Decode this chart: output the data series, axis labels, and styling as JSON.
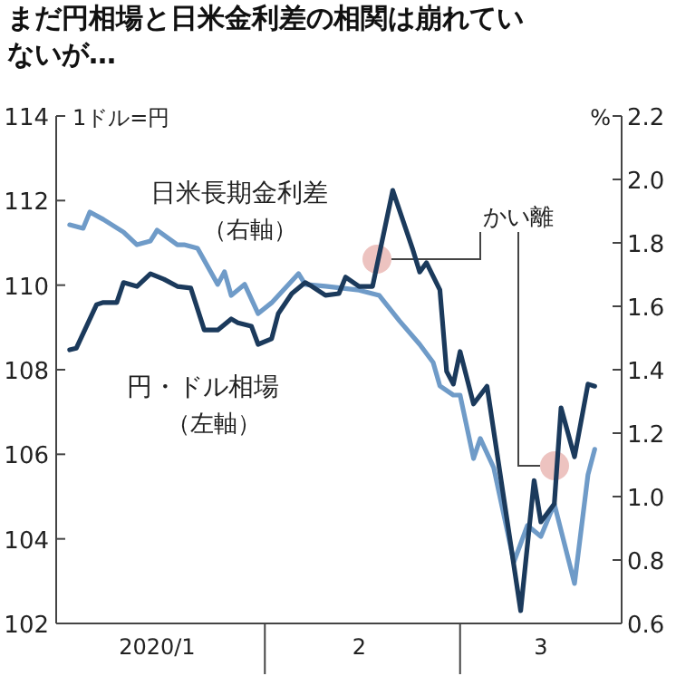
{
  "chart_data": {
    "type": "line",
    "title": "まだ円相場と日米金利差の相関は崩れていないが…",
    "ylabel": "1ドル=円",
    "y2label": "%",
    "annotations": [
      "かい離"
    ],
    "xlim": [
      "2020-01-01",
      "2020-03-25"
    ],
    "xticks": [
      {
        "value": "2020-01-16",
        "label": "2020/1"
      },
      {
        "value": "2020-02-01",
        "label": null
      },
      {
        "value": "2020-02-15",
        "label": "2"
      },
      {
        "value": "2020-03-01",
        "label": null
      },
      {
        "value": "2020-03-13",
        "label": "3"
      }
    ],
    "ylim": [
      102,
      114
    ],
    "yticks": [
      102,
      104,
      106,
      108,
      110,
      112,
      114
    ],
    "y2lim": [
      0.6,
      2.2
    ],
    "y2ticks": [
      0.6,
      0.8,
      {
        "value": 1.0,
        "label": "1.0"
      },
      1.2,
      1.4,
      1.6,
      1.8,
      {
        "value": 2.0,
        "label": "2.0"
      },
      2.2
    ],
    "series": [
      {
        "name": "円・ドル相場（左軸）",
        "color": "#1b3a5c",
        "x": [
          "2020-01-03",
          "2020-01-04",
          "2020-01-07",
          "2020-01-08",
          "2020-01-10",
          "2020-01-11",
          "2020-01-13",
          "2020-01-15",
          "2020-01-17",
          "2020-01-19",
          "2020-01-21",
          "2020-01-23",
          "2020-01-25",
          "2020-01-27",
          "2020-01-28",
          "2020-01-30",
          "2020-01-31",
          "2020-02-02",
          "2020-02-03",
          "2020-02-05",
          "2020-02-07",
          "2020-02-08",
          "2020-02-10",
          "2020-02-12",
          "2020-02-13",
          "2020-02-15",
          "2020-02-17",
          "2020-02-20",
          "2020-02-23",
          "2020-02-24",
          "2020-02-25",
          "2020-02-27",
          "2020-02-28",
          "2020-02-29",
          "2020-03-01",
          "2020-03-03",
          "2020-03-05",
          "2020-03-10",
          "2020-03-12",
          "2020-03-13",
          "2020-03-15",
          "2020-03-16",
          "2020-03-18",
          "2020-03-20",
          "2020-03-21"
        ],
        "values": [
          108.47,
          108.51,
          109.54,
          109.59,
          109.59,
          110.06,
          109.97,
          110.27,
          110.14,
          109.97,
          109.93,
          108.94,
          108.94,
          109.2,
          109.11,
          109.03,
          108.6,
          108.73,
          109.33,
          109.8,
          110.06,
          109.97,
          109.76,
          109.8,
          110.19,
          109.97,
          109.97,
          112.24,
          110.83,
          110.31,
          110.53,
          109.89,
          107.96,
          107.66,
          108.43,
          107.19,
          107.61,
          102.3,
          105.38,
          104.4,
          104.83,
          107.1,
          105.94,
          107.66,
          107.61
        ]
      },
      {
        "name": "日米長期金利差（右軸）",
        "color": "#6f9bc8",
        "axis": "y2",
        "x": [
          "2020-01-03",
          "2020-01-05",
          "2020-01-06",
          "2020-01-08",
          "2020-01-11",
          "2020-01-13",
          "2020-01-15",
          "2020-01-16",
          "2020-01-19",
          "2020-01-20",
          "2020-01-22",
          "2020-01-25",
          "2020-01-26",
          "2020-01-27",
          "2020-01-29",
          "2020-01-31",
          "2020-02-02",
          "2020-02-06",
          "2020-02-07",
          "2020-02-10",
          "2020-02-15",
          "2020-02-18",
          "2020-02-21",
          "2020-02-24",
          "2020-02-26",
          "2020-02-27",
          "2020-02-29",
          "2020-03-01",
          "2020-03-03",
          "2020-03-04",
          "2020-03-06",
          "2020-03-09",
          "2020-03-11",
          "2020-03-13",
          "2020-03-15",
          "2020-03-18",
          "2020-03-20",
          "2020-03-21"
        ],
        "values": [
          1.857,
          1.846,
          1.897,
          1.874,
          1.834,
          1.794,
          1.806,
          1.84,
          1.794,
          1.794,
          1.783,
          1.669,
          1.709,
          1.634,
          1.669,
          1.577,
          1.611,
          1.703,
          1.669,
          1.663,
          1.651,
          1.634,
          1.554,
          1.48,
          1.423,
          1.349,
          1.32,
          1.32,
          1.12,
          1.183,
          1.091,
          0.794,
          0.909,
          0.874,
          0.977,
          0.726,
          1.069,
          1.149
        ]
      }
    ]
  }
}
